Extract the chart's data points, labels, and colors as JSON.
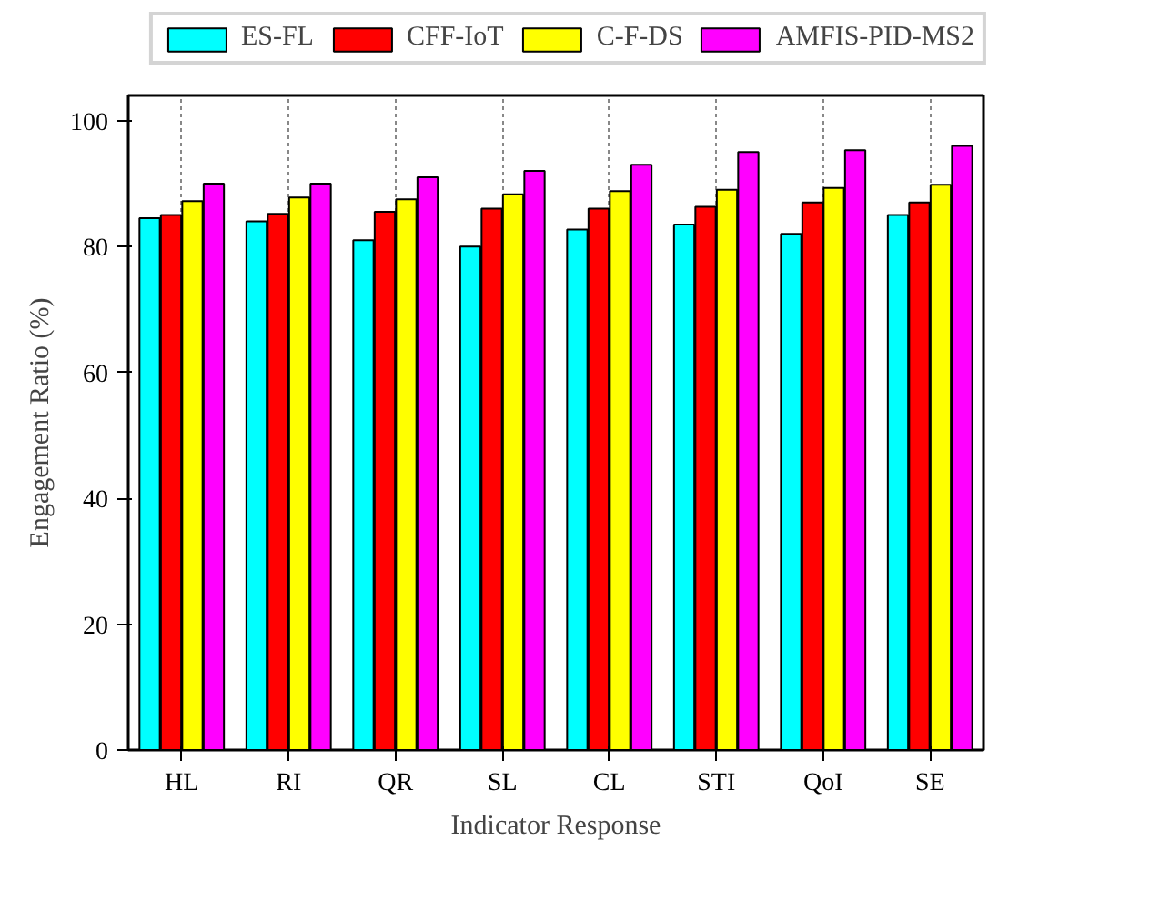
{
  "chart_data": {
    "type": "bar",
    "xlabel": "Indicator Response",
    "ylabel": "Engagement Ratio (%)",
    "categories": [
      "HL",
      "RI",
      "QR",
      "SL",
      "CL",
      "STI",
      "QoI",
      "SE"
    ],
    "series": [
      {
        "name": "ES-FL",
        "color": "#00ffff",
        "values": [
          84.5,
          84,
          81,
          80,
          82.7,
          83.5,
          82,
          85
        ]
      },
      {
        "name": "CFF-IoT",
        "color": "#ff0000",
        "values": [
          85,
          85.2,
          85.5,
          86,
          86,
          86.3,
          87,
          87
        ]
      },
      {
        "name": "C-F-DS",
        "color": "#ffff00",
        "values": [
          87.2,
          87.8,
          87.5,
          88.3,
          88.8,
          89,
          89.3,
          89.8
        ]
      },
      {
        "name": "AMFIS-PID-MS2",
        "color": "#ff00ff",
        "values": [
          90,
          90,
          91,
          92,
          93,
          95,
          95.3,
          96
        ]
      }
    ],
    "ylim": [
      0,
      104
    ],
    "yticks": [
      0,
      20,
      40,
      60,
      80,
      100
    ],
    "grid": "x",
    "legend": "top"
  }
}
